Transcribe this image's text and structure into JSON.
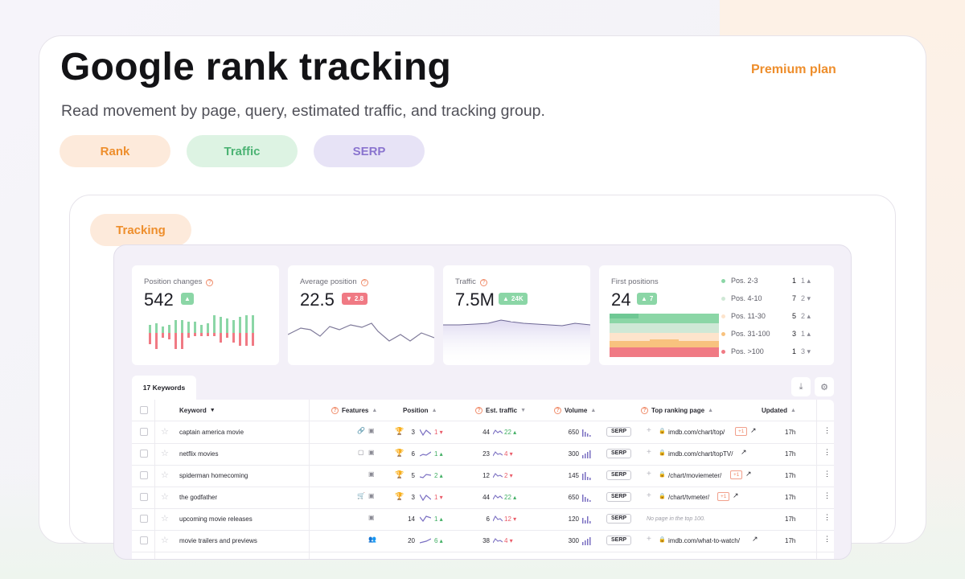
{
  "hero": {
    "title": "Google rank tracking",
    "plan": "Premium plan",
    "subtitle": "Read movement by page, query, estimated traffic, and tracking group.",
    "pills": {
      "rank": "Rank",
      "traffic": "Traffic",
      "serp": "SERP",
      "tracking": "Tracking"
    }
  },
  "stats": {
    "position_changes": {
      "label": "Position changes",
      "value": "542",
      "badge": ""
    },
    "average_position": {
      "label": "Average position",
      "value": "22.5",
      "badge": "2.8"
    },
    "traffic": {
      "label": "Traffic",
      "value": "7.5M",
      "badge": "24K"
    },
    "first_positions": {
      "label": "First positions",
      "value": "24",
      "badge": "7",
      "rows": [
        {
          "label": "Pos. 2-3",
          "count": "1",
          "change": "1",
          "dir": "up",
          "color": "#8bd6a6"
        },
        {
          "label": "Pos. 4-10",
          "count": "7",
          "change": "2",
          "dir": "down",
          "color": "#cfe8d6"
        },
        {
          "label": "Pos. 11-30",
          "count": "5",
          "change": "2",
          "dir": "up",
          "color": "#fde4cc"
        },
        {
          "label": "Pos. 31-100",
          "count": "3",
          "change": "1",
          "dir": "up",
          "color": "#f8c27e"
        },
        {
          "label": "Pos. >100",
          "count": "1",
          "change": "3",
          "dir": "down",
          "color": "#f07a84"
        }
      ]
    }
  },
  "table": {
    "tab": "17 Keywords",
    "headers": {
      "keyword": "Keyword",
      "features": "Features",
      "position": "Position",
      "est_traffic": "Est. traffic",
      "volume": "Volume",
      "top_page": "Top ranking page",
      "updated": "Updated"
    },
    "rows": [
      {
        "keyword": "captain america movie",
        "position": "3",
        "trophy": true,
        "delta": "1",
        "dir": "down",
        "traffic": "44",
        "tdelta": "22",
        "tdir": "up",
        "volume": "650",
        "serp": "SERP",
        "url": "imdb.com/chart/top/",
        "plus": "+1",
        "nopage": "",
        "updated": "17h"
      },
      {
        "keyword": "netflix movies",
        "position": "6",
        "trophy": true,
        "delta": "1",
        "dir": "up",
        "traffic": "23",
        "tdelta": "4",
        "tdir": "down",
        "volume": "300",
        "serp": "SERP",
        "url": "imdb.com/chart/topTV/",
        "plus": "",
        "nopage": "",
        "updated": "17h"
      },
      {
        "keyword": "spiderman homecoming",
        "position": "5",
        "trophy": true,
        "delta": "2",
        "dir": "up",
        "traffic": "12",
        "tdelta": "2",
        "tdir": "down",
        "volume": "145",
        "serp": "SERP",
        "url": "/chart/moviemeter/",
        "plus": "+1",
        "nopage": "",
        "updated": "17h"
      },
      {
        "keyword": "the godfather",
        "position": "3",
        "trophy": true,
        "delta": "1",
        "dir": "down",
        "traffic": "44",
        "tdelta": "22",
        "tdir": "up",
        "volume": "650",
        "serp": "SERP",
        "url": "/chart/tvmeter/",
        "plus": "+1",
        "nopage": "",
        "updated": "17h"
      },
      {
        "keyword": "upcoming movie releases",
        "position": "14",
        "trophy": false,
        "delta": "1",
        "dir": "up",
        "traffic": "6",
        "tdelta": "12",
        "tdir": "down",
        "volume": "120",
        "serp": "SERP",
        "url": "",
        "plus": "",
        "nopage": "No page in the top 100.",
        "updated": "17h"
      },
      {
        "keyword": "movie trailers and previews",
        "position": "20",
        "trophy": false,
        "delta": "6",
        "dir": "up",
        "traffic": "38",
        "tdelta": "4",
        "tdir": "down",
        "volume": "300",
        "serp": "SERP",
        "url": "imdb.com/what-to-watch/",
        "plus": "",
        "nopage": "",
        "updated": "17h"
      }
    ]
  }
}
